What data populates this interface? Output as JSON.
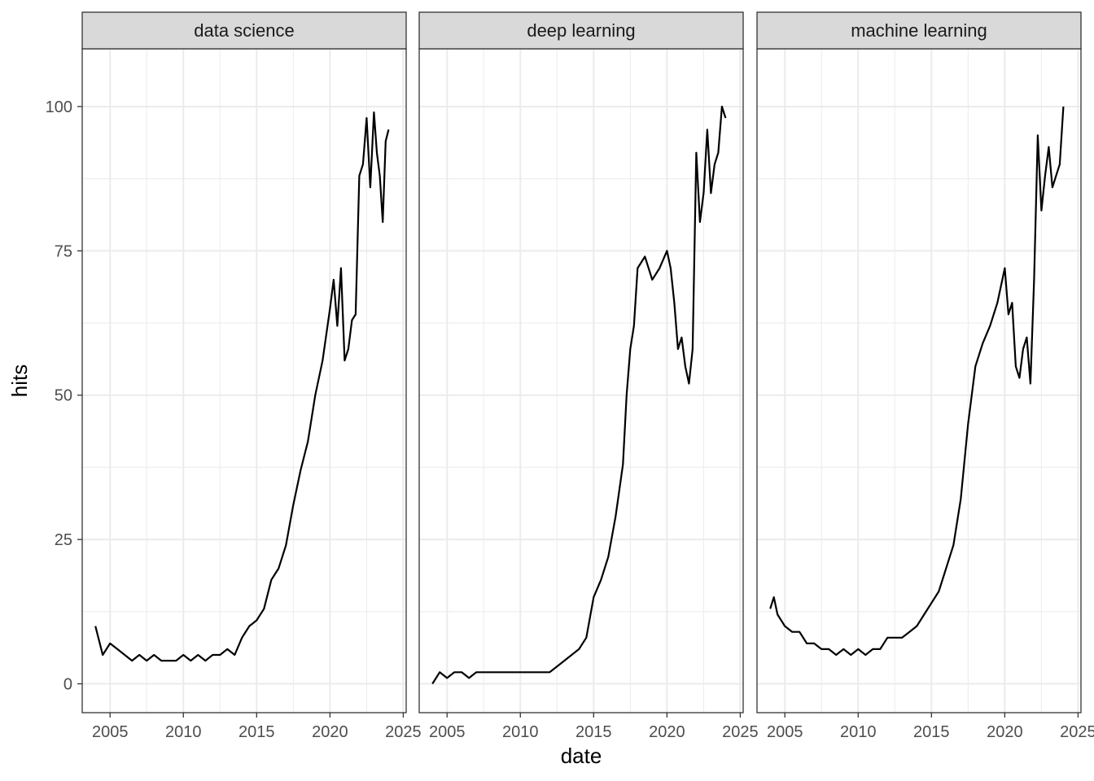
{
  "chart_data": {
    "type": "line",
    "theme": "facet panels with grey header strips, light grey gridlines, black series lines",
    "xlabel": "date",
    "ylabel": "hits",
    "x_ticks": [
      2005,
      2010,
      2015,
      2020,
      2025
    ],
    "y_ticks": [
      0,
      25,
      50,
      75,
      100
    ],
    "xlim": [
      2003.1,
      2025.2
    ],
    "ylim": [
      -5,
      110
    ],
    "grid": true,
    "line_color": "#000000",
    "strip_color": "#d9d9d9",
    "grid_color": "#ebebeb",
    "panels": [
      {
        "title": "data science",
        "x": [
          2004.0,
          2004.5,
          2005.0,
          2005.5,
          2006.0,
          2006.5,
          2007.0,
          2007.5,
          2008.0,
          2008.5,
          2009.0,
          2009.5,
          2010.0,
          2010.5,
          2011.0,
          2011.5,
          2012.0,
          2012.5,
          2013.0,
          2013.5,
          2014.0,
          2014.5,
          2015.0,
          2015.5,
          2016.0,
          2016.5,
          2017.0,
          2017.5,
          2018.0,
          2018.5,
          2019.0,
          2019.5,
          2020.0,
          2020.25,
          2020.5,
          2020.75,
          2021.0,
          2021.25,
          2021.5,
          2021.75,
          2022.0,
          2022.25,
          2022.5,
          2022.75,
          2023.0,
          2023.2,
          2023.4,
          2023.6,
          2023.8,
          2024.0
        ],
        "y": [
          10,
          5,
          7,
          6,
          5,
          4,
          5,
          4,
          5,
          4,
          4,
          4,
          5,
          4,
          5,
          4,
          5,
          5,
          6,
          5,
          8,
          10,
          11,
          13,
          18,
          20,
          24,
          31,
          37,
          42,
          50,
          56,
          65,
          70,
          62,
          72,
          56,
          58,
          63,
          64,
          88,
          90,
          98,
          86,
          99,
          92,
          88,
          80,
          94,
          96
        ]
      },
      {
        "title": "deep learning",
        "x": [
          2004.0,
          2004.5,
          2005.0,
          2005.5,
          2006.0,
          2006.5,
          2007.0,
          2008.0,
          2009.0,
          2010.0,
          2011.0,
          2012.0,
          2012.5,
          2013.0,
          2013.5,
          2014.0,
          2014.5,
          2015.0,
          2015.5,
          2016.0,
          2016.5,
          2017.0,
          2017.25,
          2017.5,
          2017.75,
          2018.0,
          2018.5,
          2019.0,
          2019.5,
          2020.0,
          2020.25,
          2020.5,
          2020.75,
          2021.0,
          2021.25,
          2021.5,
          2021.75,
          2022.0,
          2022.25,
          2022.5,
          2022.75,
          2023.0,
          2023.25,
          2023.5,
          2023.75,
          2024.0
        ],
        "y": [
          0,
          2,
          1,
          2,
          2,
          1,
          2,
          2,
          2,
          2,
          2,
          2,
          3,
          4,
          5,
          6,
          8,
          15,
          18,
          22,
          29,
          38,
          50,
          58,
          62,
          72,
          74,
          70,
          72,
          75,
          72,
          66,
          58,
          60,
          55,
          52,
          58,
          92,
          80,
          85,
          96,
          85,
          90,
          92,
          100,
          98
        ]
      },
      {
        "title": "machine learning",
        "x": [
          2004.0,
          2004.25,
          2004.5,
          2004.75,
          2005.0,
          2005.5,
          2006.0,
          2006.5,
          2007.0,
          2007.5,
          2008.0,
          2008.5,
          2009.0,
          2009.5,
          2010.0,
          2010.5,
          2011.0,
          2011.5,
          2012.0,
          2012.5,
          2013.0,
          2013.5,
          2014.0,
          2014.5,
          2015.0,
          2015.5,
          2016.0,
          2016.5,
          2017.0,
          2017.5,
          2018.0,
          2018.5,
          2019.0,
          2019.5,
          2020.0,
          2020.25,
          2020.5,
          2020.75,
          2021.0,
          2021.25,
          2021.5,
          2021.75,
          2022.0,
          2022.25,
          2022.5,
          2022.75,
          2023.0,
          2023.25,
          2023.5,
          2023.75,
          2024.0
        ],
        "y": [
          13,
          15,
          12,
          11,
          10,
          9,
          9,
          7,
          7,
          6,
          6,
          5,
          6,
          5,
          6,
          5,
          6,
          6,
          8,
          8,
          8,
          9,
          10,
          12,
          14,
          16,
          20,
          24,
          32,
          45,
          55,
          59,
          62,
          66,
          72,
          64,
          66,
          55,
          53,
          58,
          60,
          52,
          70,
          95,
          82,
          88,
          93,
          86,
          88,
          90,
          100
        ]
      }
    ]
  }
}
